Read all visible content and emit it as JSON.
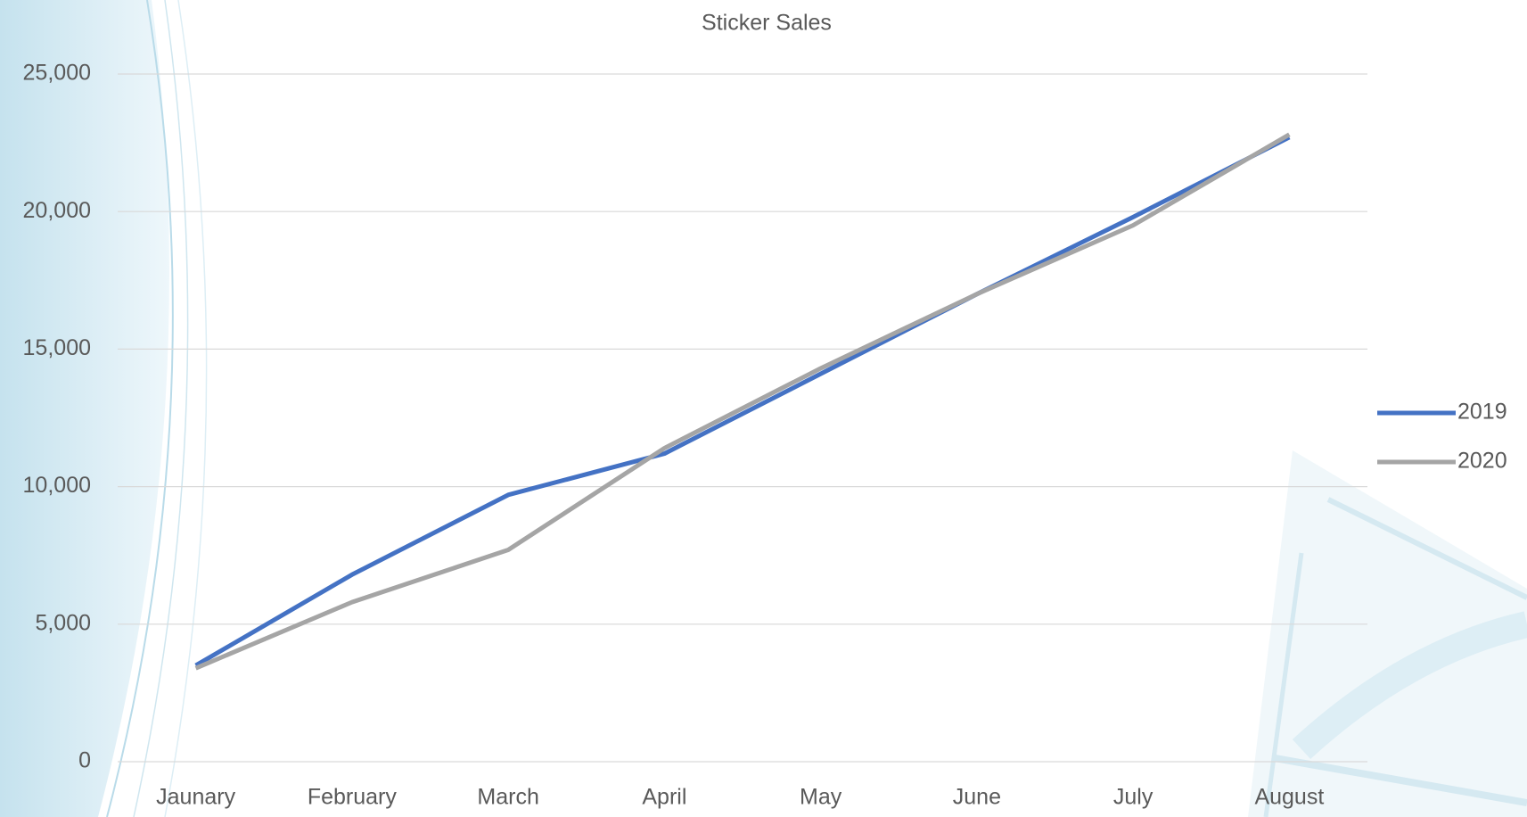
{
  "chart_data": {
    "type": "line",
    "title": "Sticker Sales",
    "categories": [
      "Jaunary",
      "February",
      "March",
      "April",
      "May",
      "June",
      "July",
      "August"
    ],
    "series": [
      {
        "name": "2019",
        "color": "#4472c4",
        "values": [
          3500,
          6800,
          9700,
          11200,
          14100,
          17000,
          19800,
          22700
        ]
      },
      {
        "name": "2020",
        "color": "#a5a5a5",
        "values": [
          3400,
          5800,
          7700,
          11400,
          14300,
          17000,
          19500,
          22800
        ]
      }
    ],
    "ylim": [
      0,
      25000
    ],
    "yticks": [
      0,
      {
        "value": 5000,
        "label": "5,000"
      },
      {
        "value": 10000,
        "label": "10,000"
      },
      {
        "value": 15000,
        "label": "15,000"
      },
      {
        "value": 20000,
        "label": "20,000"
      },
      {
        "value": 25000,
        "label": "25,000"
      }
    ],
    "grid": true,
    "legend": "right"
  }
}
